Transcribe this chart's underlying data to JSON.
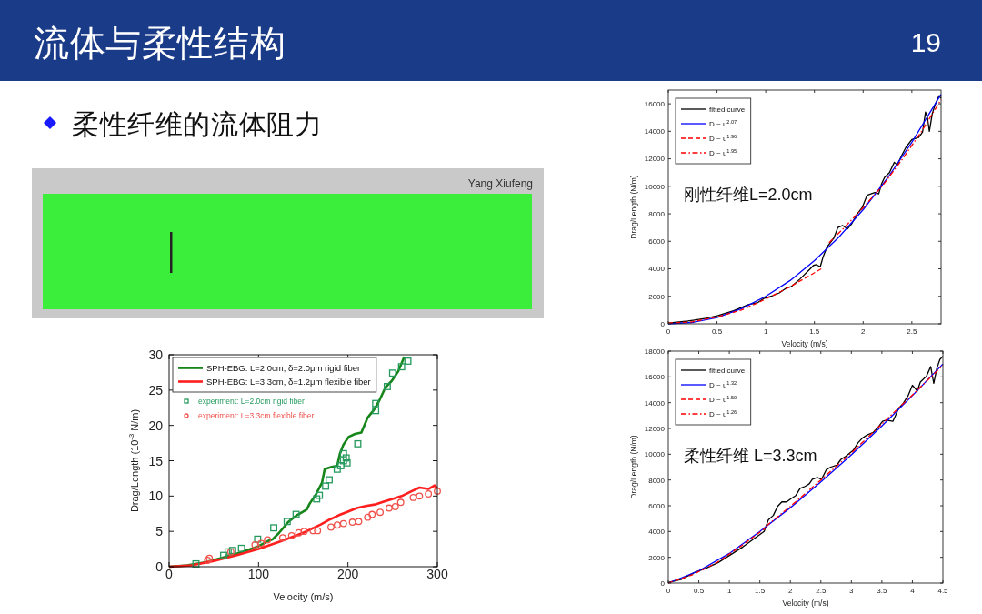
{
  "chart_data": [
    {
      "type": "other",
      "title": "流体与柔性结构",
      "subtitle": "柔性纤维的流体阻力",
      "annotations": [
        "19",
        "Yang Xiufeng"
      ]
    },
    {
      "type": "line",
      "xlabel": "Velocity (m/s)",
      "ylabel": "Drag/Length (10$^{-3}$ N/m)",
      "xlim": [
        0,
        300
      ],
      "ylim": [
        0,
        30
      ],
      "xticks": [
        0,
        100,
        200,
        300
      ],
      "yticks": [
        0,
        5,
        10,
        15,
        20,
        25,
        30
      ],
      "legend": "top left",
      "series": [
        {
          "name": "SPH-EBG: L=2.0cm, δ=2.0μm rigid fiber",
          "color": "#17861a",
          "x": [
            0,
            20,
            40,
            60,
            80,
            100,
            110,
            116,
            123,
            133,
            143,
            154,
            157,
            164,
            171,
            174,
            181,
            188,
            191,
            195,
            201,
            208,
            215,
            222,
            229,
            235,
            242,
            249,
            256,
            263
          ],
          "values": [
            0,
            0.2,
            0.6,
            1.3,
            2.0,
            2.9,
            3.6,
            3.9,
            4.8,
            6.3,
            7.3,
            8.1,
            8.9,
            10.2,
            11.9,
            13.8,
            14.1,
            14.3,
            16.0,
            17.3,
            18.4,
            18.8,
            19.0,
            21.1,
            22.2,
            23.5,
            25.4,
            26.3,
            27.6,
            29.7
          ]
        },
        {
          "name": "SPH-EBG: L=3.3cm, δ=1.2μm flexible fiber",
          "color": "#ff1f1f",
          "x": [
            0,
            25,
            50,
            75,
            100,
            125,
            150,
            160,
            170,
            180,
            190,
            200,
            210,
            220,
            230,
            240,
            250,
            260,
            270,
            280,
            290,
            297,
            300
          ],
          "values": [
            0,
            0.2,
            0.8,
            1.6,
            2.5,
            3.6,
            4.8,
            5.4,
            6.0,
            6.7,
            7.3,
            7.8,
            8.3,
            8.6,
            8.8,
            9.2,
            9.6,
            10.0,
            10.6,
            11.2,
            11.0,
            11.5,
            11.1
          ]
        },
        {
          "type": "scatter",
          "name": "experiment: L=2.0cm rigid fiber",
          "color": "#259a5e",
          "marker": "square",
          "x": [
            30,
            61,
            66,
            71,
            81,
            99,
            117,
            132,
            142,
            165,
            168,
            175,
            179,
            188,
            192,
            195,
            195,
            198,
            199,
            211,
            231,
            231,
            244,
            250,
            260,
            267
          ],
          "values": [
            0.4,
            1.6,
            2.1,
            2.3,
            2.6,
            3.9,
            5.5,
            6.4,
            7.4,
            9.6,
            10.1,
            11.4,
            12.3,
            13.8,
            14.3,
            15.0,
            16.0,
            15.4,
            14.7,
            17.4,
            22.1,
            23.1,
            25.5,
            27.4,
            28.3,
            29.1
          ]
        },
        {
          "type": "scatter",
          "name": "experiment: L=3.3cm flexible fiber",
          "color": "#f0504a",
          "marker": "circle",
          "x": [
            43,
            45,
            69,
            96,
            103,
            110,
            127,
            137,
            145,
            151,
            161,
            166,
            181,
            188,
            195,
            205,
            212,
            222,
            227,
            236,
            246,
            253,
            259,
            273,
            280,
            290,
            300
          ],
          "values": [
            0.9,
            1.2,
            2.1,
            3.1,
            3.3,
            3.8,
            4.1,
            4.4,
            4.8,
            5.0,
            5.1,
            5.1,
            5.6,
            5.9,
            6.1,
            6.3,
            6.4,
            7.0,
            7.4,
            7.7,
            8.3,
            8.5,
            9.1,
            9.8,
            10.0,
            10.3,
            10.7
          ]
        }
      ]
    },
    {
      "type": "line",
      "xlabel": "Velocity (m/s)",
      "ylabel": "Drag/Length (N/m)",
      "xlim": [
        0,
        2.8
      ],
      "ylim": [
        0,
        17000
      ],
      "xticks": [
        0,
        0.5,
        1,
        1.5,
        2,
        2.5
      ],
      "yticks": [
        0,
        2000,
        4000,
        6000,
        8000,
        10000,
        12000,
        14000,
        16000
      ],
      "legend": "top left",
      "annotations": [
        "刚性纤维L=2.0cm"
      ],
      "series": [
        {
          "name": "fitted curve",
          "color": "#000000",
          "x": [
            0,
            0.2,
            0.39,
            0.51,
            0.67,
            0.82,
            0.92,
            0.98,
            1.07,
            1.14,
            1.21,
            1.26,
            1.35,
            1.45,
            1.49,
            1.52,
            1.56,
            1.59,
            1.63,
            1.7,
            1.74,
            1.79,
            1.84,
            1.88,
            1.94,
            1.99,
            2.04,
            2.08,
            2.12,
            2.16,
            2.19,
            2.22,
            2.27,
            2.32,
            2.35,
            2.4,
            2.44,
            2.5,
            2.57,
            2.61,
            2.64,
            2.66,
            2.68,
            2.71,
            2.74,
            2.78,
            2.8
          ],
          "values": [
            50,
            200,
            400,
            600,
            950,
            1400,
            1550,
            1850,
            2050,
            2250,
            2600,
            2700,
            3250,
            3950,
            4250,
            4300,
            4150,
            4900,
            5600,
            6250,
            7000,
            7150,
            6900,
            7250,
            8000,
            8450,
            9350,
            9450,
            9550,
            9450,
            10200,
            10650,
            11000,
            11750,
            11550,
            12300,
            12850,
            13400,
            13550,
            13950,
            15400,
            15000,
            14000,
            15300,
            15950,
            16600,
            16400
          ]
        },
        {
          "name": "D ~ u$^{2.07}$",
          "color": "#0000ff",
          "x": [
            0,
            0.25,
            0.5,
            0.75,
            1,
            1.25,
            1.5,
            1.75,
            2,
            2.25,
            2.5,
            2.8
          ],
          "values": [
            0,
            100,
            450,
            1100,
            2000,
            3150,
            4600,
            6300,
            8300,
            10600,
            13200,
            16700
          ]
        },
        {
          "name": "D ~ u$^{1.96}$",
          "color": "#ff0000",
          "line_style": "dashed",
          "x": [
            0,
            0.25,
            0.5,
            0.75,
            1,
            1.25,
            1.57
          ],
          "values": [
            50,
            150,
            500,
            1000,
            1800,
            2700,
            4000
          ]
        },
        {
          "name": "D ~ u$^{1.95}$",
          "color": "#ff0000",
          "line_style": "dashdot",
          "x": [
            1.65,
            1.8,
            2,
            2.2,
            2.4,
            2.6,
            2.8
          ],
          "values": [
            5900,
            6950,
            8450,
            10050,
            11950,
            14000,
            16300
          ]
        }
      ]
    },
    {
      "type": "line",
      "xlabel": "Velocity (m/s)",
      "ylabel": "Drag/Length (N/m)",
      "xlim": [
        0,
        4.5
      ],
      "ylim": [
        0,
        18000
      ],
      "xticks": [
        0,
        0.5,
        1,
        1.5,
        2,
        2.5,
        3,
        3.5,
        4,
        4.5
      ],
      "yticks": [
        0,
        2000,
        4000,
        6000,
        8000,
        10000,
        12000,
        14000,
        16000,
        18000
      ],
      "legend": "top left",
      "annotations": [
        "柔性纤维 L=3.3cm"
      ],
      "series": [
        {
          "name": "fitted curve",
          "color": "#000000",
          "x": [
            0,
            0.22,
            0.42,
            0.62,
            0.82,
            1.02,
            1.22,
            1.42,
            1.57,
            1.64,
            1.72,
            1.79,
            1.86,
            1.94,
            2.01,
            2.09,
            2.16,
            2.24,
            2.31,
            2.36,
            2.44,
            2.51,
            2.59,
            2.66,
            2.76,
            2.83,
            2.91,
            3.03,
            3.11,
            3.18,
            3.26,
            3.36,
            3.43,
            3.51,
            3.58,
            3.68,
            3.78,
            3.85,
            3.93,
            4.0,
            4.08,
            4.13,
            4.23,
            4.3,
            4.35,
            4.4,
            4.45,
            4.5
          ],
          "values": [
            50,
            300,
            800,
            1150,
            1600,
            2200,
            2800,
            3500,
            4000,
            4900,
            5250,
            5950,
            6300,
            6300,
            6550,
            6800,
            7350,
            7500,
            7700,
            8050,
            8200,
            8050,
            8800,
            9000,
            9150,
            9600,
            9850,
            10300,
            10900,
            11250,
            11500,
            11700,
            12050,
            12550,
            12650,
            12550,
            13600,
            13950,
            14550,
            15350,
            14900,
            15600,
            16050,
            16800,
            15500,
            16650,
            17350,
            17600
          ]
        },
        {
          "name": "D ~ u$^{1.32}$",
          "color": "#0000ff",
          "x": [
            0,
            0.5,
            1,
            1.5,
            2,
            2.5,
            3,
            3.5,
            4,
            4.5
          ],
          "values": [
            0,
            950,
            2300,
            4000,
            5850,
            7850,
            9950,
            12200,
            14550,
            17000
          ]
        },
        {
          "name": "D ~ u$^{1.50}$",
          "color": "#ff0000",
          "line_style": "dashed",
          "x": [
            0,
            0.4,
            0.8,
            1.2,
            1.6
          ],
          "values": [
            0,
            650,
            1600,
            2900,
            4300
          ]
        },
        {
          "name": "D ~ u$^{1.26}$",
          "color": "#ff0000",
          "line_style": "dashdot",
          "x": [
            1.6,
            2,
            2.5,
            3,
            3.5,
            4,
            4.5
          ],
          "values": [
            4400,
            5950,
            8000,
            10100,
            12350,
            14600,
            16900
          ]
        }
      ]
    }
  ]
}
